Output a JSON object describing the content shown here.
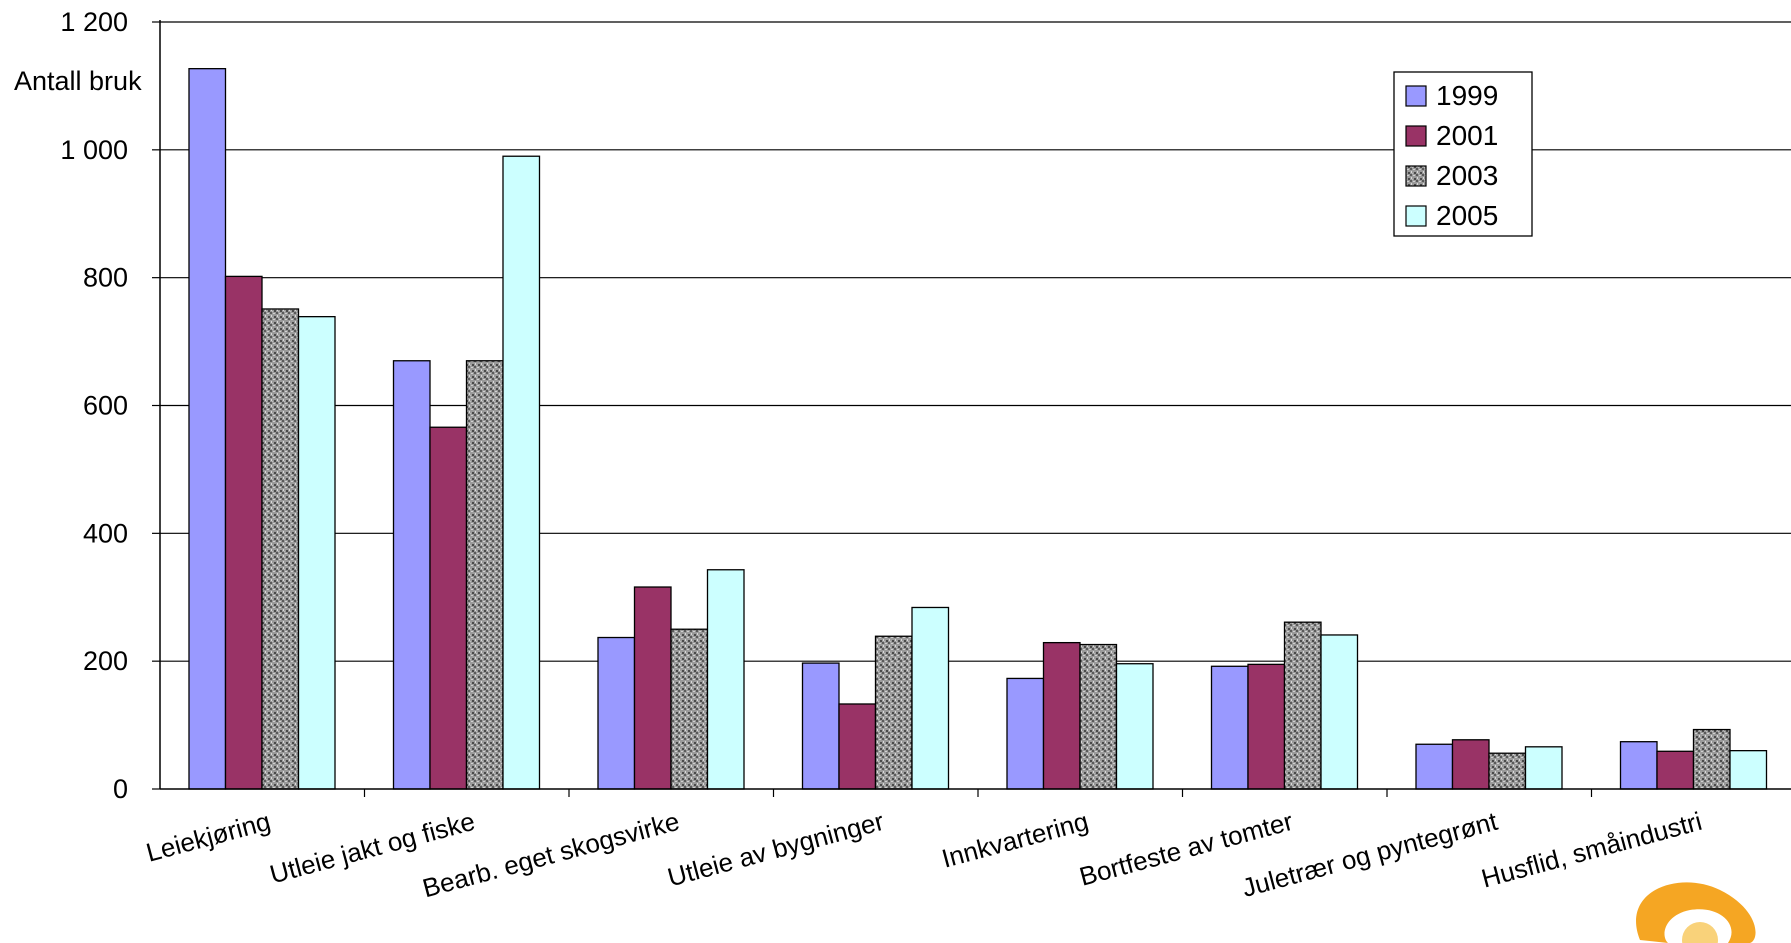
{
  "chart_data": {
    "type": "bar",
    "title": "",
    "xlabel": "",
    "ylabel": "Antall bruk",
    "ylim": [
      0,
      1200
    ],
    "yticks": [
      0,
      200,
      400,
      600,
      800,
      1000,
      1200
    ],
    "ytick_labels": [
      "0",
      "200",
      "400",
      "600",
      "800",
      "1 000",
      "1 200"
    ],
    "grid": true,
    "legend_position": "top-right",
    "categories": [
      "Leiekjøring",
      "Utleie jakt og fiske",
      "Bearb. eget skogsvirke",
      "Utleie av bygninger",
      "Innkvartering",
      "Bortfeste av tomter",
      "Juletrær og pyntegrønt",
      "Husflid, småindustri"
    ],
    "series": [
      {
        "name": "1999",
        "color": "#9999ff",
        "pattern": "solid",
        "values": [
          1127,
          670,
          237,
          197,
          173,
          192,
          70,
          74
        ]
      },
      {
        "name": "2001",
        "color": "#993366",
        "pattern": "solid",
        "values": [
          802,
          566,
          316,
          133,
          229,
          195,
          77,
          59
        ]
      },
      {
        "name": "2003",
        "color": "#8a8a8a",
        "pattern": "speckled",
        "values": [
          751,
          670,
          250,
          239,
          226,
          261,
          56,
          93
        ]
      },
      {
        "name": "2005",
        "color": "#ccffff",
        "pattern": "solid",
        "values": [
          739,
          990,
          343,
          284,
          196,
          241,
          66,
          60
        ]
      }
    ]
  }
}
